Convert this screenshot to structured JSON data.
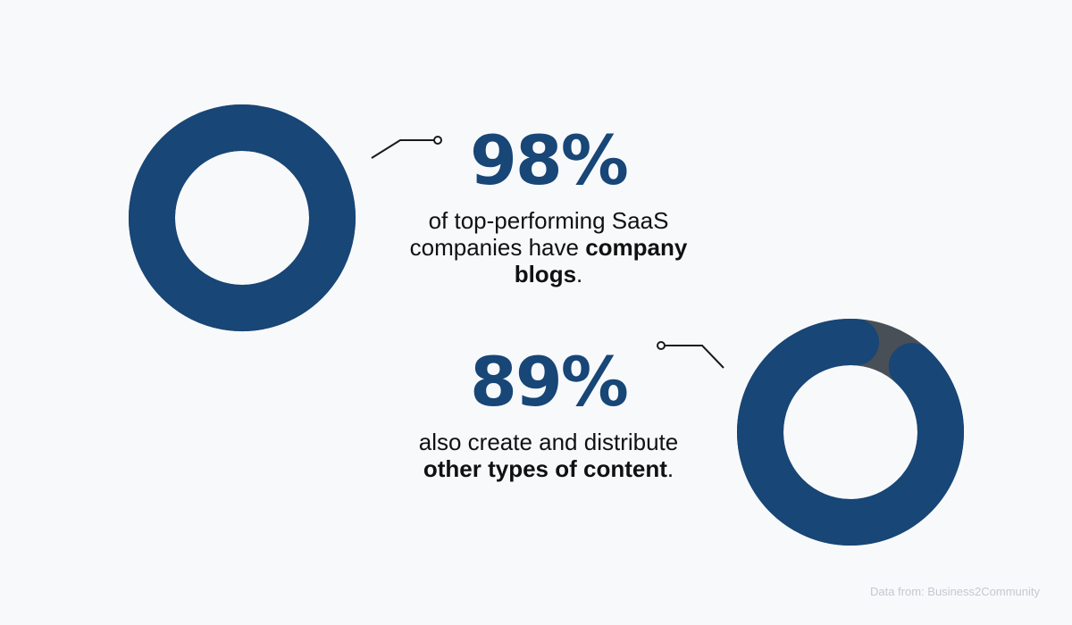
{
  "colors": {
    "background": "#f8f9fb",
    "primary": "#174677",
    "remainder": "#484f57",
    "text": "#111111",
    "connector": "#1a1a1a",
    "source": "#c4c9d0"
  },
  "chart_data": [
    {
      "type": "pie",
      "variant": "donut",
      "value": 98,
      "remainder": 2,
      "unit": "%",
      "label": "98%",
      "description": {
        "text_before": "of top-performing SaaS companies have ",
        "bold": "company blogs",
        "text_after": "."
      }
    },
    {
      "type": "pie",
      "variant": "donut",
      "value": 89,
      "remainder": 11,
      "unit": "%",
      "label": "89%",
      "description": {
        "text_before": "also create and distribute ",
        "bold": "other types of content",
        "text_after": "."
      }
    }
  ],
  "source": "Data from: Business2Community"
}
